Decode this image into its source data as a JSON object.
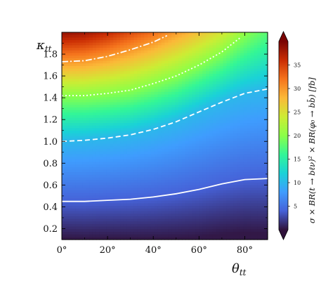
{
  "chart_data": {
    "type": "heatmap",
    "xlabel_main": "θ",
    "xlabel_sub": "tt",
    "ylabel_main": "κ",
    "ylabel_sub": "tt",
    "xlim": [
      0,
      90
    ],
    "ylim": [
      0.1,
      2.0
    ],
    "x_ticks": [
      0,
      20,
      40,
      60,
      80
    ],
    "x_tick_labels": [
      "0°",
      "20°",
      "40°",
      "60°",
      "80°"
    ],
    "y_ticks": [
      0.2,
      0.4,
      0.6,
      0.8,
      1.0,
      1.2,
      1.4,
      1.6,
      1.8
    ],
    "y_tick_labels": [
      "0.2",
      "0.4",
      "0.6",
      "0.8",
      "1.0",
      "1.2",
      "1.4",
      "1.6",
      "1.8"
    ],
    "colorbar": {
      "label": "σ × BR(t → bℓν)² × BR(φ₀ → bb̄) [fb]",
      "range": [
        0,
        40
      ],
      "ticks": [
        5,
        10,
        15,
        20,
        25,
        30,
        35
      ],
      "tick_labels": [
        "5",
        "10",
        "15",
        "20",
        "25",
        "30",
        "35"
      ],
      "colormap": "turbo",
      "extend": "both"
    },
    "contours": [
      {
        "level": 4,
        "style": "solid",
        "points": [
          [
            0,
            0.45
          ],
          [
            10,
            0.45
          ],
          [
            20,
            0.46
          ],
          [
            30,
            0.47
          ],
          [
            40,
            0.49
          ],
          [
            50,
            0.52
          ],
          [
            60,
            0.56
          ],
          [
            70,
            0.61
          ],
          [
            80,
            0.65
          ],
          [
            90,
            0.66
          ]
        ]
      },
      {
        "level": 10,
        "style": "dashed",
        "points": [
          [
            0,
            1.0
          ],
          [
            10,
            1.01
          ],
          [
            20,
            1.03
          ],
          [
            30,
            1.06
          ],
          [
            40,
            1.11
          ],
          [
            50,
            1.18
          ],
          [
            60,
            1.27
          ],
          [
            70,
            1.36
          ],
          [
            80,
            1.44
          ],
          [
            90,
            1.48
          ]
        ]
      },
      {
        "level": 20,
        "style": "dotted",
        "points": [
          [
            0,
            1.42
          ],
          [
            10,
            1.42
          ],
          [
            20,
            1.44
          ],
          [
            30,
            1.47
          ],
          [
            40,
            1.53
          ],
          [
            50,
            1.6
          ],
          [
            60,
            1.7
          ],
          [
            70,
            1.82
          ],
          [
            78,
            1.95
          ]
        ]
      },
      {
        "level": 30,
        "style": "dashdot",
        "points": [
          [
            0,
            1.73
          ],
          [
            10,
            1.74
          ],
          [
            20,
            1.78
          ],
          [
            30,
            1.84
          ],
          [
            40,
            1.91
          ],
          [
            46,
            1.97
          ]
        ]
      }
    ]
  }
}
